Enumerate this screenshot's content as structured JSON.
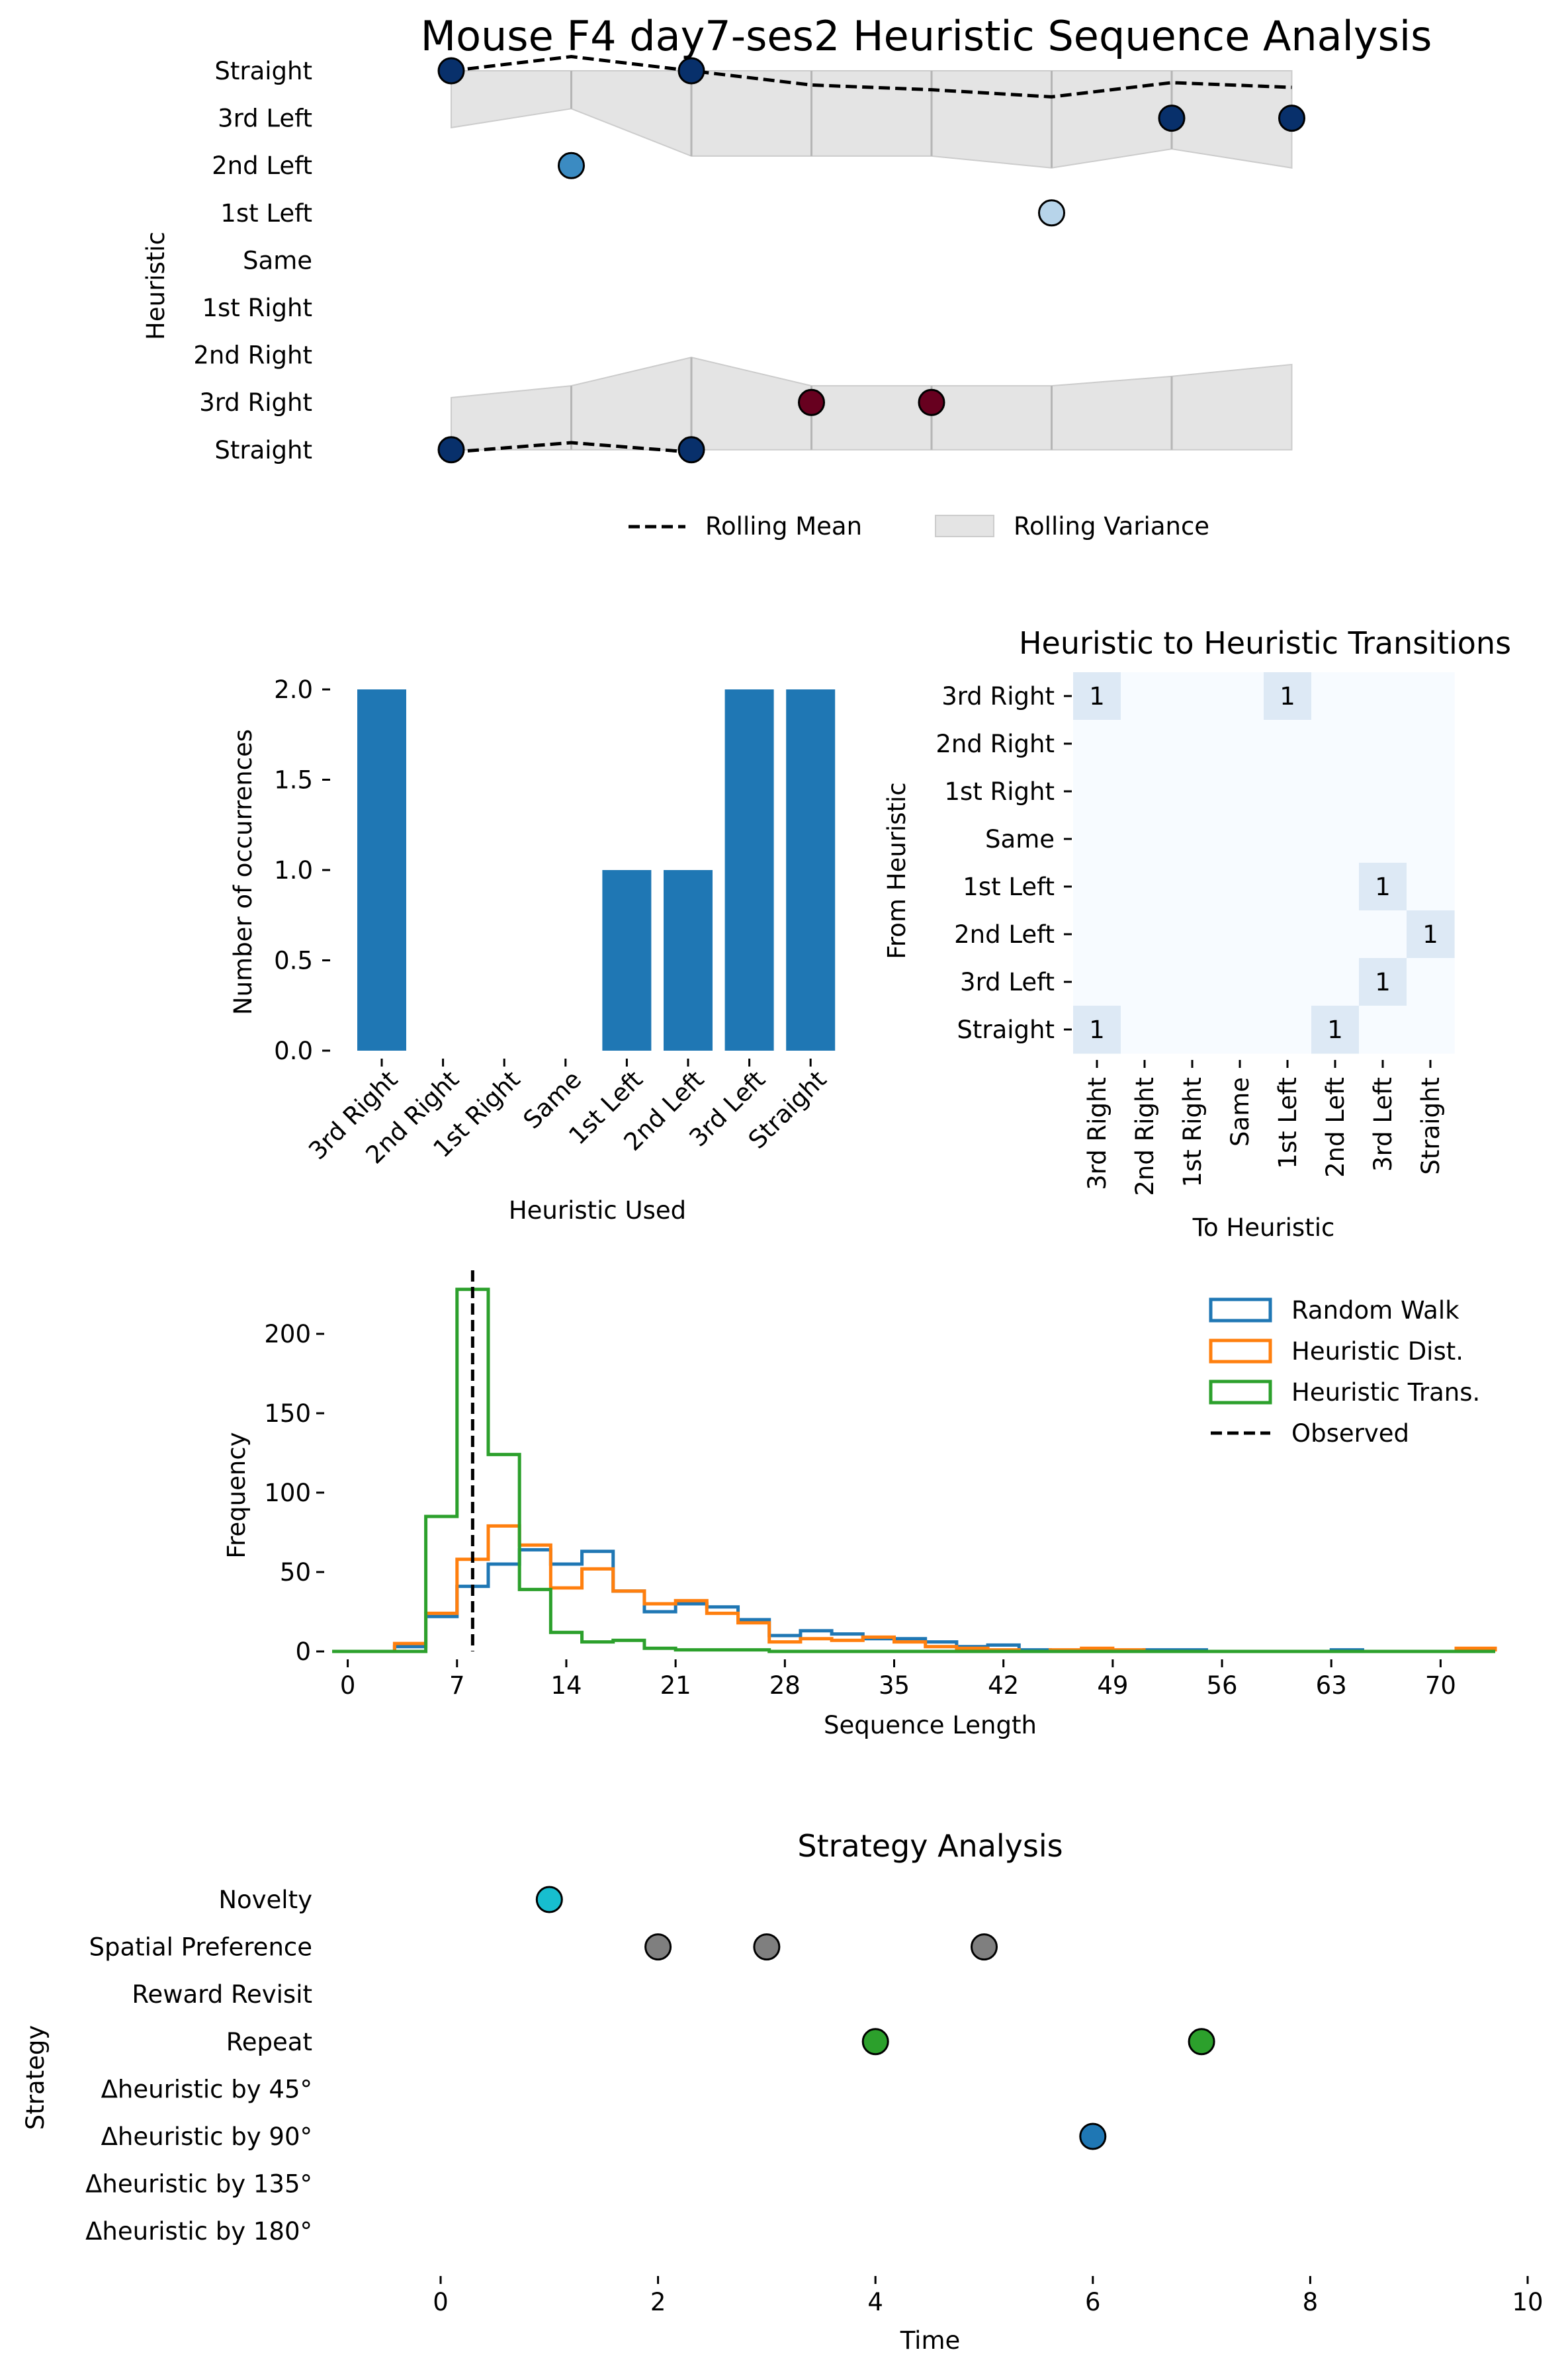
{
  "title": "Mouse F4 day7-ses2 Heuristic Sequence Analysis",
  "colors": {
    "navy": "#08306b",
    "mid_blue": "#3b8bc2",
    "light_blue": "#b7d4ea",
    "maroon": "#67001f",
    "bar_blue": "#1f77b4",
    "orange": "#ff7f0e",
    "green": "#2ca02c",
    "cyan": "#17becf",
    "gray": "#7f7f7f",
    "band": "#e4e4e4",
    "heat_zero": "#f7fbff",
    "heat_one": "#dde9f5"
  },
  "panels": [
    {
      "id": "sequence",
      "type": "scatter",
      "ylabel": "Heuristic",
      "y_categories": [
        "Straight",
        "3rd Right",
        "2nd Right",
        "1st Right",
        "Same",
        "1st Left",
        "2nd Left",
        "3rd Left",
        "Straight"
      ],
      "points": [
        {
          "t": 0,
          "level": 8,
          "color": "navy"
        },
        {
          "t": 0,
          "level": 0,
          "color": "navy"
        },
        {
          "t": 1,
          "level": 6,
          "color": "mid_blue"
        },
        {
          "t": 2,
          "level": 8,
          "color": "navy"
        },
        {
          "t": 2,
          "level": 0,
          "color": "navy"
        },
        {
          "t": 3,
          "level": 1,
          "color": "maroon"
        },
        {
          "t": 4,
          "level": 1,
          "color": "maroon"
        },
        {
          "t": 5,
          "level": 5,
          "color": "light_blue"
        },
        {
          "t": 6,
          "level": 7,
          "color": "navy"
        },
        {
          "t": 7,
          "level": 7,
          "color": "navy"
        }
      ],
      "rolling_mean_top": [
        8,
        8.3,
        8,
        7.7,
        7.6,
        7.45,
        7.75,
        7.65
      ],
      "rolling_mean_bottom": [
        -0.05,
        0.15,
        -0.05
      ],
      "rolling_variance_top": {
        "upper": [
          8,
          8,
          8,
          8,
          8,
          8,
          8,
          8
        ],
        "lower": [
          6.8,
          7.2,
          6.2,
          6.2,
          6.2,
          5.95,
          6.35,
          5.95
        ]
      },
      "rolling_variance_bottom": {
        "upper": [
          1.1,
          1.35,
          1.95,
          1.35,
          1.35,
          1.35,
          1.55,
          1.8
        ],
        "lower": [
          0,
          0,
          0,
          0,
          0,
          0,
          0,
          0
        ]
      },
      "legend": [
        "Rolling Mean",
        "Rolling Variance"
      ]
    },
    {
      "id": "counts",
      "type": "bar",
      "xlabel": "Heuristic Used",
      "ylabel": "Number of occurrences",
      "categories": [
        "3rd Right",
        "2nd Right",
        "1st Right",
        "Same",
        "1st Left",
        "2nd Left",
        "3rd Left",
        "Straight"
      ],
      "values": [
        2,
        0,
        0,
        0,
        1,
        1,
        2,
        2
      ],
      "ylim": [
        0,
        2.0
      ],
      "yticks": [
        "0.0",
        "0.5",
        "1.0",
        "1.5",
        "2.0"
      ]
    },
    {
      "id": "transitions",
      "type": "heatmap",
      "title": "Heuristic to Heuristic Transitions",
      "xlabel": "To Heuristic",
      "ylabel": "From Heuristic",
      "rows": [
        "3rd Right",
        "2nd Right",
        "1st Right",
        "Same",
        "1st Left",
        "2nd Left",
        "3rd Left",
        "Straight"
      ],
      "cols": [
        "3rd Right",
        "2nd Right",
        "1st Right",
        "Same",
        "1st Left",
        "2nd Left",
        "3rd Left",
        "Straight"
      ],
      "matrix": [
        [
          1,
          0,
          0,
          0,
          1,
          0,
          0,
          0
        ],
        [
          0,
          0,
          0,
          0,
          0,
          0,
          0,
          0
        ],
        [
          0,
          0,
          0,
          0,
          0,
          0,
          0,
          0
        ],
        [
          0,
          0,
          0,
          0,
          0,
          0,
          0,
          0
        ],
        [
          0,
          0,
          0,
          0,
          0,
          0,
          1,
          0
        ],
        [
          0,
          0,
          0,
          0,
          0,
          0,
          0,
          1
        ],
        [
          0,
          0,
          0,
          0,
          0,
          0,
          1,
          0
        ],
        [
          1,
          0,
          0,
          0,
          0,
          1,
          0,
          0
        ]
      ]
    },
    {
      "id": "lengths",
      "type": "histogram",
      "xlabel": "Sequence Length",
      "ylabel": "Frequency",
      "xlim": [
        -1,
        73.5
      ],
      "ylim": [
        0,
        240
      ],
      "xticks": [
        0,
        7,
        14,
        21,
        28,
        35,
        42,
        49,
        56,
        63,
        70
      ],
      "yticks": [
        0,
        50,
        100,
        150,
        200
      ],
      "observed": 8,
      "series": [
        {
          "name": "Random Walk",
          "color": "bar_blue",
          "edges": [
            -1,
            1,
            3,
            5,
            7,
            9,
            11,
            13,
            15,
            17,
            19,
            21,
            23,
            25,
            27,
            29,
            31,
            33,
            35,
            37,
            39,
            41,
            43,
            45,
            47,
            49,
            51,
            53,
            55,
            57,
            59,
            61,
            63,
            65,
            67,
            69,
            71,
            73.5
          ],
          "counts": [
            0,
            0,
            3,
            22,
            41,
            55,
            64,
            55,
            63,
            38,
            25,
            30,
            28,
            20,
            10,
            13,
            11,
            8,
            8,
            6,
            3,
            4,
            1,
            0,
            0,
            0,
            1,
            1,
            0,
            0,
            0,
            0,
            1,
            0,
            0,
            0,
            0
          ]
        },
        {
          "name": "Heuristic Dist.",
          "color": "orange",
          "edges": [
            -1,
            1,
            3,
            5,
            7,
            9,
            11,
            13,
            15,
            17,
            19,
            21,
            23,
            25,
            27,
            29,
            31,
            33,
            35,
            37,
            39,
            41,
            43,
            45,
            47,
            49,
            51,
            53,
            55,
            57,
            59,
            61,
            63,
            65,
            67,
            69,
            71,
            73.5
          ],
          "counts": [
            0,
            0,
            5,
            24,
            58,
            79,
            67,
            40,
            52,
            38,
            30,
            32,
            24,
            18,
            6,
            8,
            7,
            9,
            6,
            3,
            2,
            1,
            0,
            1,
            2,
            1,
            0,
            0,
            0,
            0,
            0,
            0,
            0,
            0,
            0,
            0,
            2
          ]
        },
        {
          "name": "Heuristic Trans.",
          "color": "green",
          "edges": [
            -1,
            1,
            3,
            5,
            7,
            9,
            11,
            13,
            15,
            17,
            19,
            21,
            23,
            25,
            27,
            29,
            31,
            33,
            35,
            37,
            39,
            41,
            43,
            45,
            47,
            49,
            51,
            53,
            55,
            57,
            59,
            61,
            63,
            65,
            67,
            69,
            71,
            73.5
          ],
          "counts": [
            0,
            0,
            0,
            85,
            228,
            124,
            39,
            12,
            6,
            7,
            2,
            1,
            1,
            1,
            0,
            0,
            0,
            0,
            0,
            0,
            0,
            0,
            0,
            0,
            0,
            0,
            0,
            0,
            0,
            0,
            0,
            0,
            0,
            0,
            0,
            0,
            0
          ]
        }
      ],
      "legend": [
        "Random Walk",
        "Heuristic Dist.",
        "Heuristic Trans.",
        "Observed"
      ]
    },
    {
      "id": "strategy",
      "type": "scatter",
      "title": "Strategy Analysis",
      "xlabel": "Time",
      "ylabel": "Strategy",
      "y_categories": [
        "Novelty",
        "Spatial Preference",
        "Reward Revisit",
        "Repeat",
        "Δheuristic by 45°",
        "Δheuristic by 90°",
        "Δheuristic by 135°",
        "Δheuristic by 180°"
      ],
      "xlim": [
        -1,
        10
      ],
      "xticks": [
        0,
        2,
        4,
        6,
        8,
        10
      ],
      "points": [
        {
          "t": 1,
          "row": 0,
          "color": "cyan"
        },
        {
          "t": 2,
          "row": 1,
          "color": "gray"
        },
        {
          "t": 3,
          "row": 1,
          "color": "gray"
        },
        {
          "t": 5,
          "row": 1,
          "color": "gray"
        },
        {
          "t": 4,
          "row": 3,
          "color": "green"
        },
        {
          "t": 7,
          "row": 3,
          "color": "green"
        },
        {
          "t": 6,
          "row": 5,
          "color": "bar_blue"
        }
      ]
    }
  ]
}
